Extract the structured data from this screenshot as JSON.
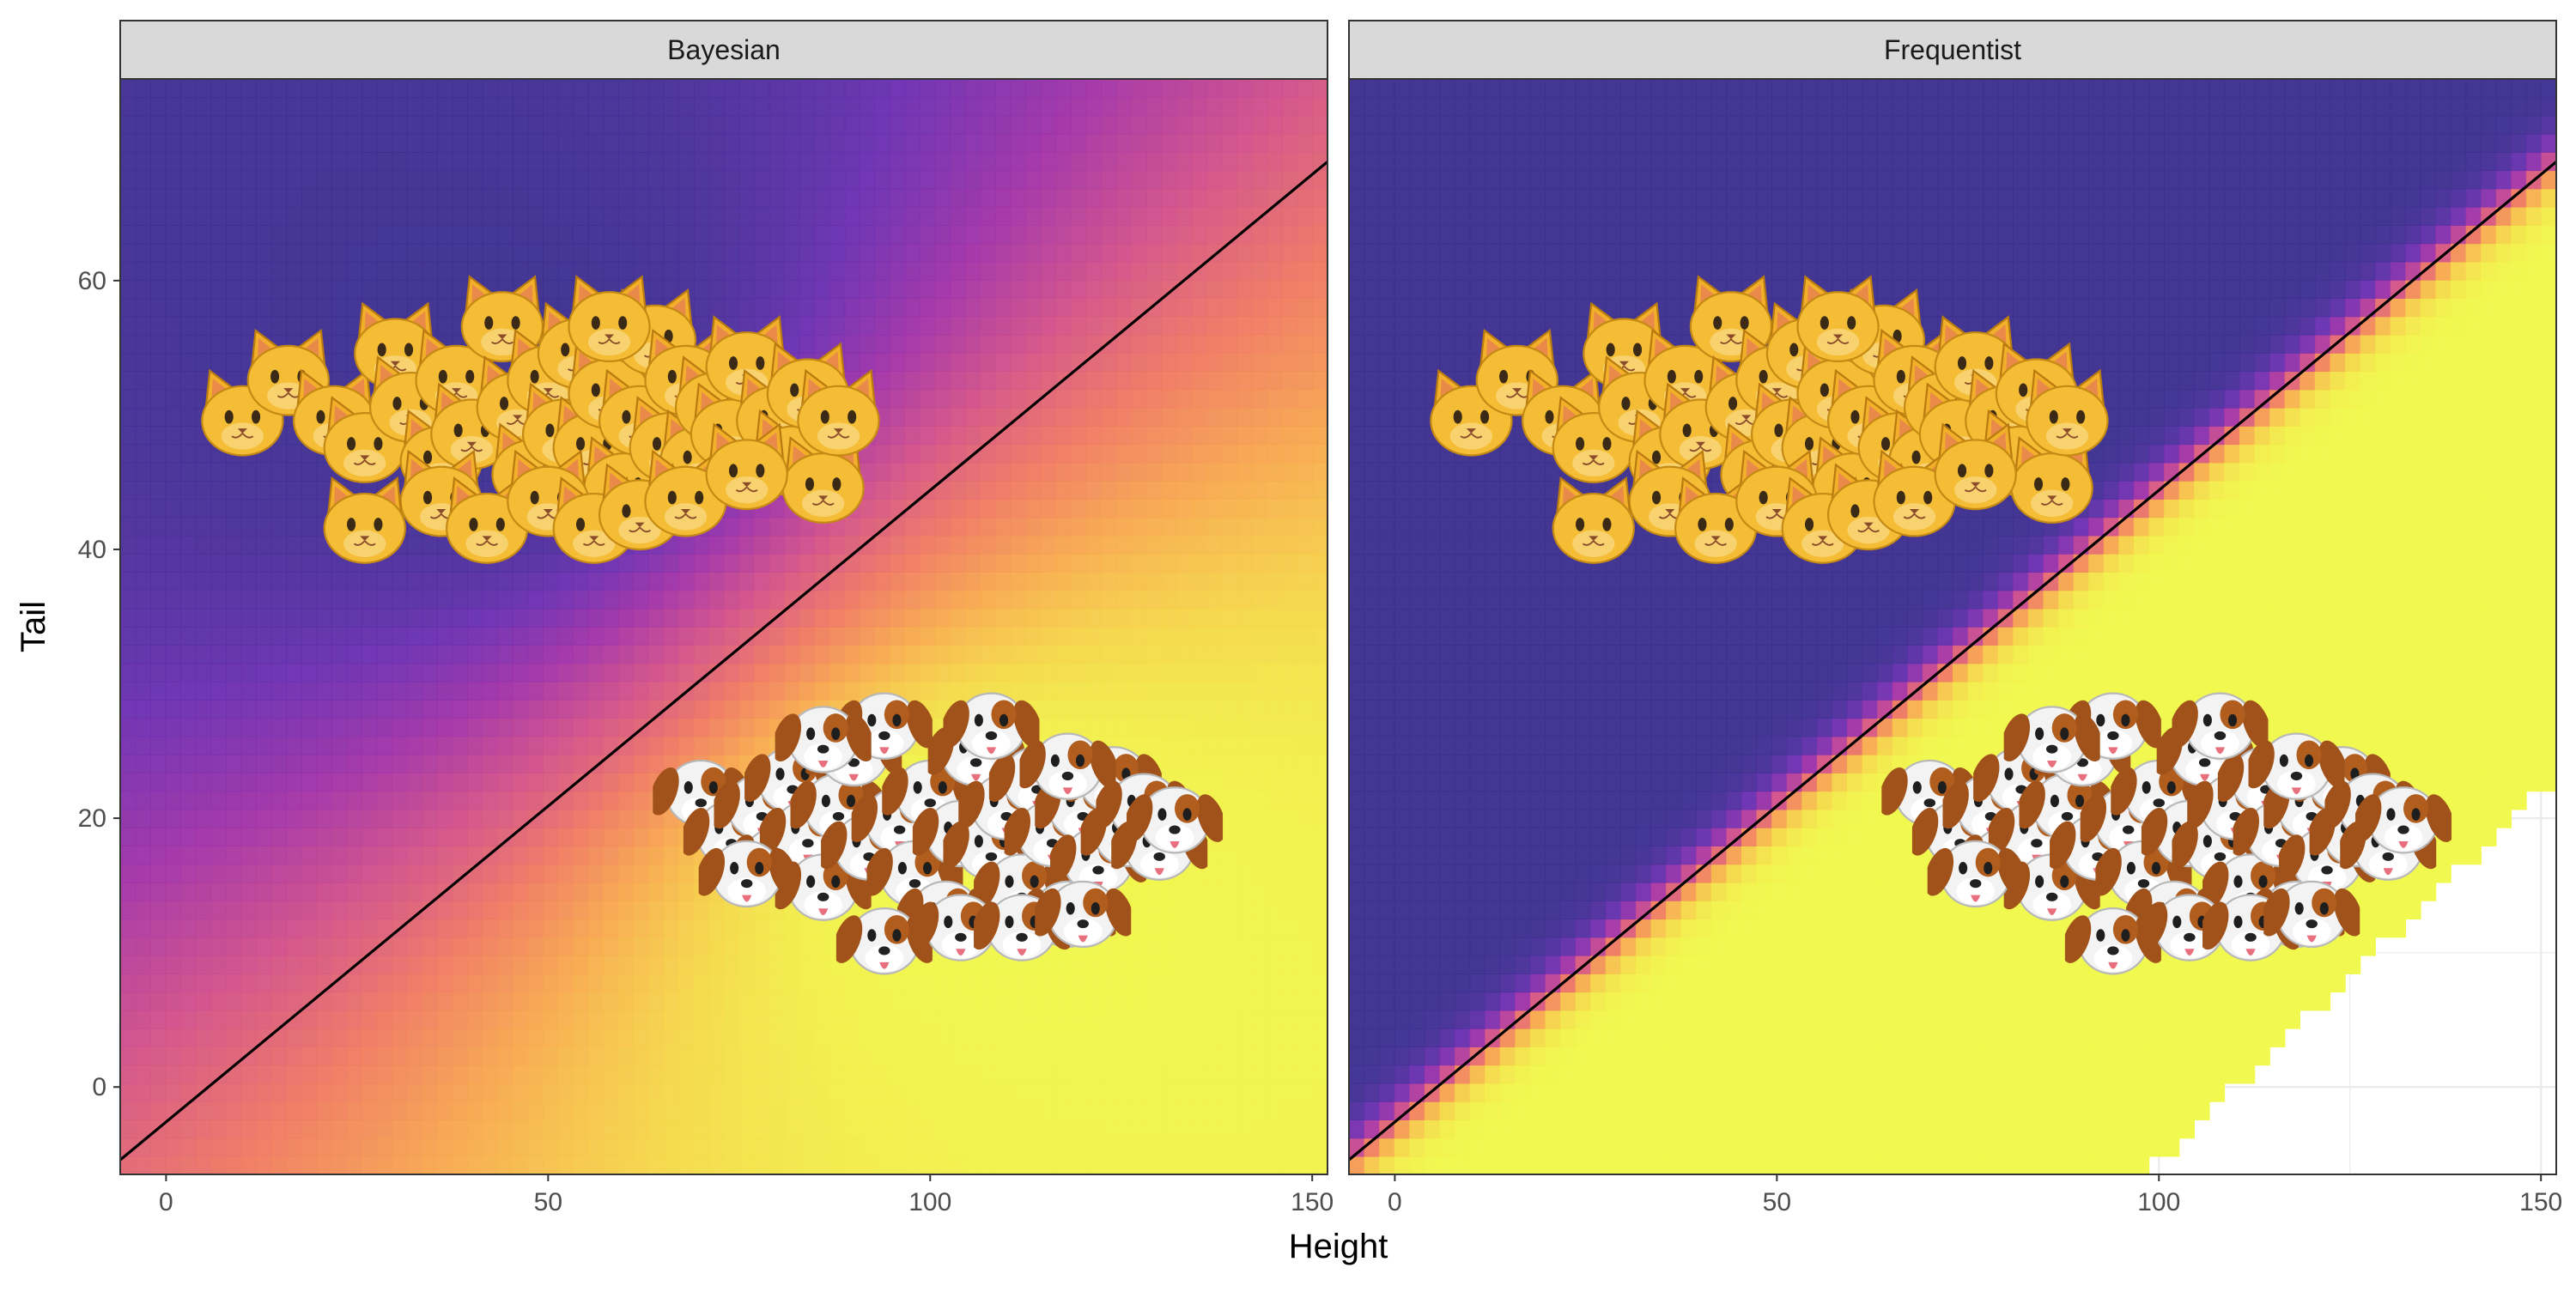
{
  "chart_data": {
    "type": "heatmap",
    "description_note": "",
    "xlabel": "Height",
    "ylabel": "Tail",
    "xlim": [
      -6,
      152
    ],
    "ylim": [
      -6.5,
      75
    ],
    "x_ticks": [
      0,
      50,
      100,
      150
    ],
    "y_ticks": [
      0,
      20,
      40,
      60
    ],
    "grid": "on",
    "legend": "none",
    "colors": {
      "class_cat": "#3b2f8f",
      "class_dog": "#f0f94a",
      "gradient": [
        "#3b2f8f",
        "#6a2fb1",
        "#a132a8",
        "#d04f8a",
        "#ef7a62",
        "#f8a84e",
        "#f6d449",
        "#f0f94a"
      ],
      "boundary_line": "#000000",
      "strip_bg": "#d9d9d9"
    },
    "decision_boundary": {
      "intercept": -2.6,
      "slope": 0.47
    },
    "panels": [
      {
        "strip_label": "Bayesian",
        "method": "bayesian",
        "band_width": 1.0
      },
      {
        "strip_label": "Frequentist",
        "method": "frequentist",
        "band_width": 0.14,
        "missing_region": "bottom-right"
      }
    ],
    "series": [
      {
        "name": "cat",
        "icon": "cat-face-icon",
        "points": [
          [
            10,
            50
          ],
          [
            16,
            53
          ],
          [
            22,
            50
          ],
          [
            26,
            48
          ],
          [
            30,
            55
          ],
          [
            32,
            51
          ],
          [
            36,
            47
          ],
          [
            38,
            53
          ],
          [
            40,
            49
          ],
          [
            44,
            57
          ],
          [
            46,
            51
          ],
          [
            48,
            46
          ],
          [
            50,
            53
          ],
          [
            52,
            49
          ],
          [
            54,
            55
          ],
          [
            56,
            48
          ],
          [
            58,
            52
          ],
          [
            60,
            45
          ],
          [
            62,
            50
          ],
          [
            64,
            56
          ],
          [
            66,
            48
          ],
          [
            68,
            53
          ],
          [
            70,
            47
          ],
          [
            72,
            51
          ],
          [
            74,
            49
          ],
          [
            76,
            54
          ],
          [
            80,
            50
          ],
          [
            82,
            47
          ],
          [
            84,
            52
          ],
          [
            86,
            45
          ],
          [
            88,
            50
          ],
          [
            36,
            44
          ],
          [
            42,
            42
          ],
          [
            50,
            44
          ],
          [
            56,
            42
          ],
          [
            62,
            43
          ],
          [
            68,
            44
          ],
          [
            26,
            42
          ],
          [
            76,
            46
          ],
          [
            58,
            57
          ]
        ]
      },
      {
        "name": "dog",
        "icon": "dog-face-icon",
        "points": [
          [
            70,
            22
          ],
          [
            74,
            19
          ],
          [
            78,
            21
          ],
          [
            80,
            17
          ],
          [
            82,
            23
          ],
          [
            84,
            19
          ],
          [
            86,
            15
          ],
          [
            88,
            21
          ],
          [
            90,
            25
          ],
          [
            92,
            18
          ],
          [
            94,
            27
          ],
          [
            96,
            20
          ],
          [
            98,
            16
          ],
          [
            100,
            22
          ],
          [
            102,
            13
          ],
          [
            104,
            19
          ],
          [
            106,
            25
          ],
          [
            108,
            18
          ],
          [
            110,
            21
          ],
          [
            112,
            15
          ],
          [
            114,
            23
          ],
          [
            116,
            19
          ],
          [
            118,
            13
          ],
          [
            120,
            21
          ],
          [
            122,
            17
          ],
          [
            124,
            23
          ],
          [
            126,
            19
          ],
          [
            128,
            21
          ],
          [
            130,
            18
          ],
          [
            132,
            20
          ],
          [
            94,
            11
          ],
          [
            104,
            12
          ],
          [
            112,
            12
          ],
          [
            120,
            13
          ],
          [
            86,
            26
          ],
          [
            108,
            27
          ],
          [
            76,
            16
          ],
          [
            118,
            24
          ]
        ]
      }
    ]
  }
}
